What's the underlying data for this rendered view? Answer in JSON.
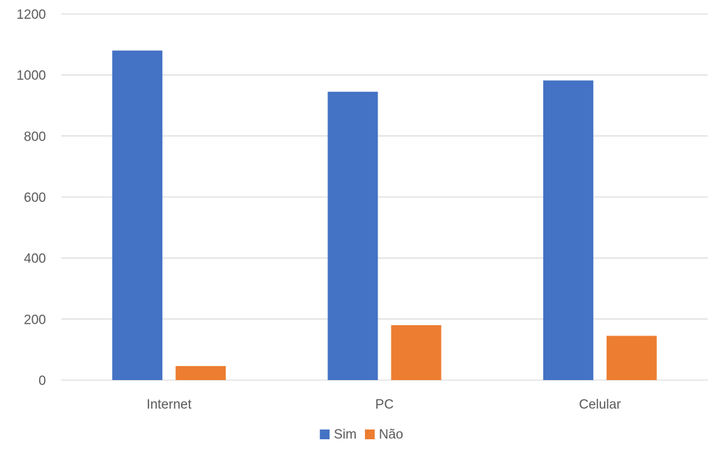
{
  "chart_data": {
    "type": "bar",
    "title": "",
    "xlabel": "",
    "ylabel": "",
    "categories": [
      "Internet",
      "PC",
      "Celular"
    ],
    "series": [
      {
        "name": "Sim",
        "values": [
          1080,
          945,
          982
        ],
        "color": "#4472C4"
      },
      {
        "name": "Não",
        "values": [
          46,
          180,
          145
        ],
        "color": "#ED7D31"
      }
    ],
    "ylim": [
      0,
      1200
    ],
    "yticks": [
      0,
      200,
      400,
      600,
      800,
      1000,
      1200
    ],
    "grid": true,
    "gridline_color": "#D9D9D9",
    "legend_position": "bottom"
  }
}
